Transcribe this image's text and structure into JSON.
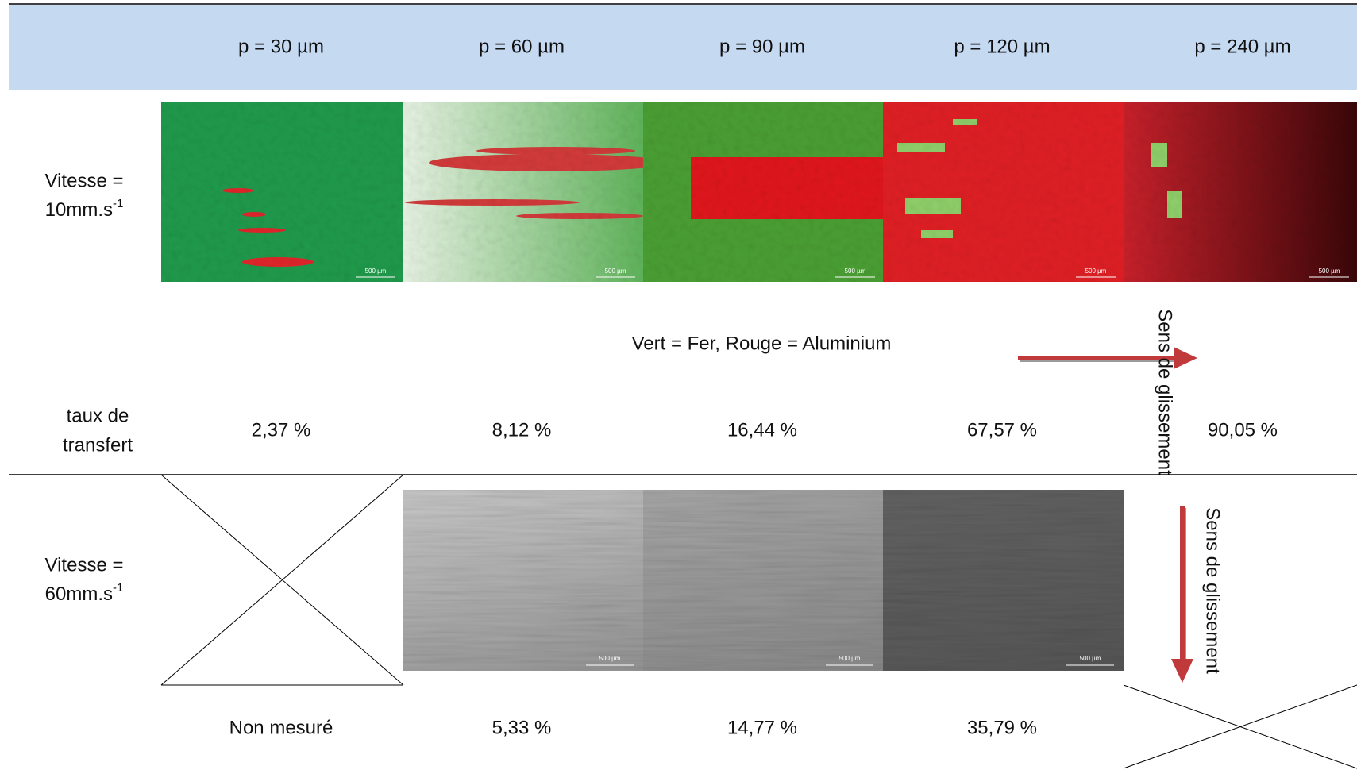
{
  "header": {
    "columns": [
      "p = 30 µm",
      "p = 60 µm",
      "p = 90 µm",
      "p = 120 µm",
      "p = 240 µm"
    ]
  },
  "row_1": {
    "label_line1": "Vitesse =",
    "label_line2": "10mm.s",
    "label_sup": "-1",
    "scale_bars": [
      "500 µm",
      "500 µm",
      "500 µm",
      "500 µm",
      "500 µm"
    ]
  },
  "legend": "Vert = Fer, Rouge = Aluminium",
  "arrow_labels": [
    "Sens de glissement",
    "Sens de glissement"
  ],
  "transfer_label": [
    "taux de",
    "transfert"
  ],
  "transfer_values_row_1": [
    "2,37 %",
    "8,12 %",
    "16,44 %",
    "67,57 %",
    "90,05 %"
  ],
  "row_2": {
    "label_line1": "Vitesse =",
    "label_line2": "60mm.s",
    "label_sup": "-1",
    "scale_bars": [
      "500 µm",
      "500 µm",
      "500 µm"
    ]
  },
  "transfer_values_row_2": [
    "Non mesuré",
    "5,33 %",
    "14,77 %",
    "35,79 %"
  ]
}
